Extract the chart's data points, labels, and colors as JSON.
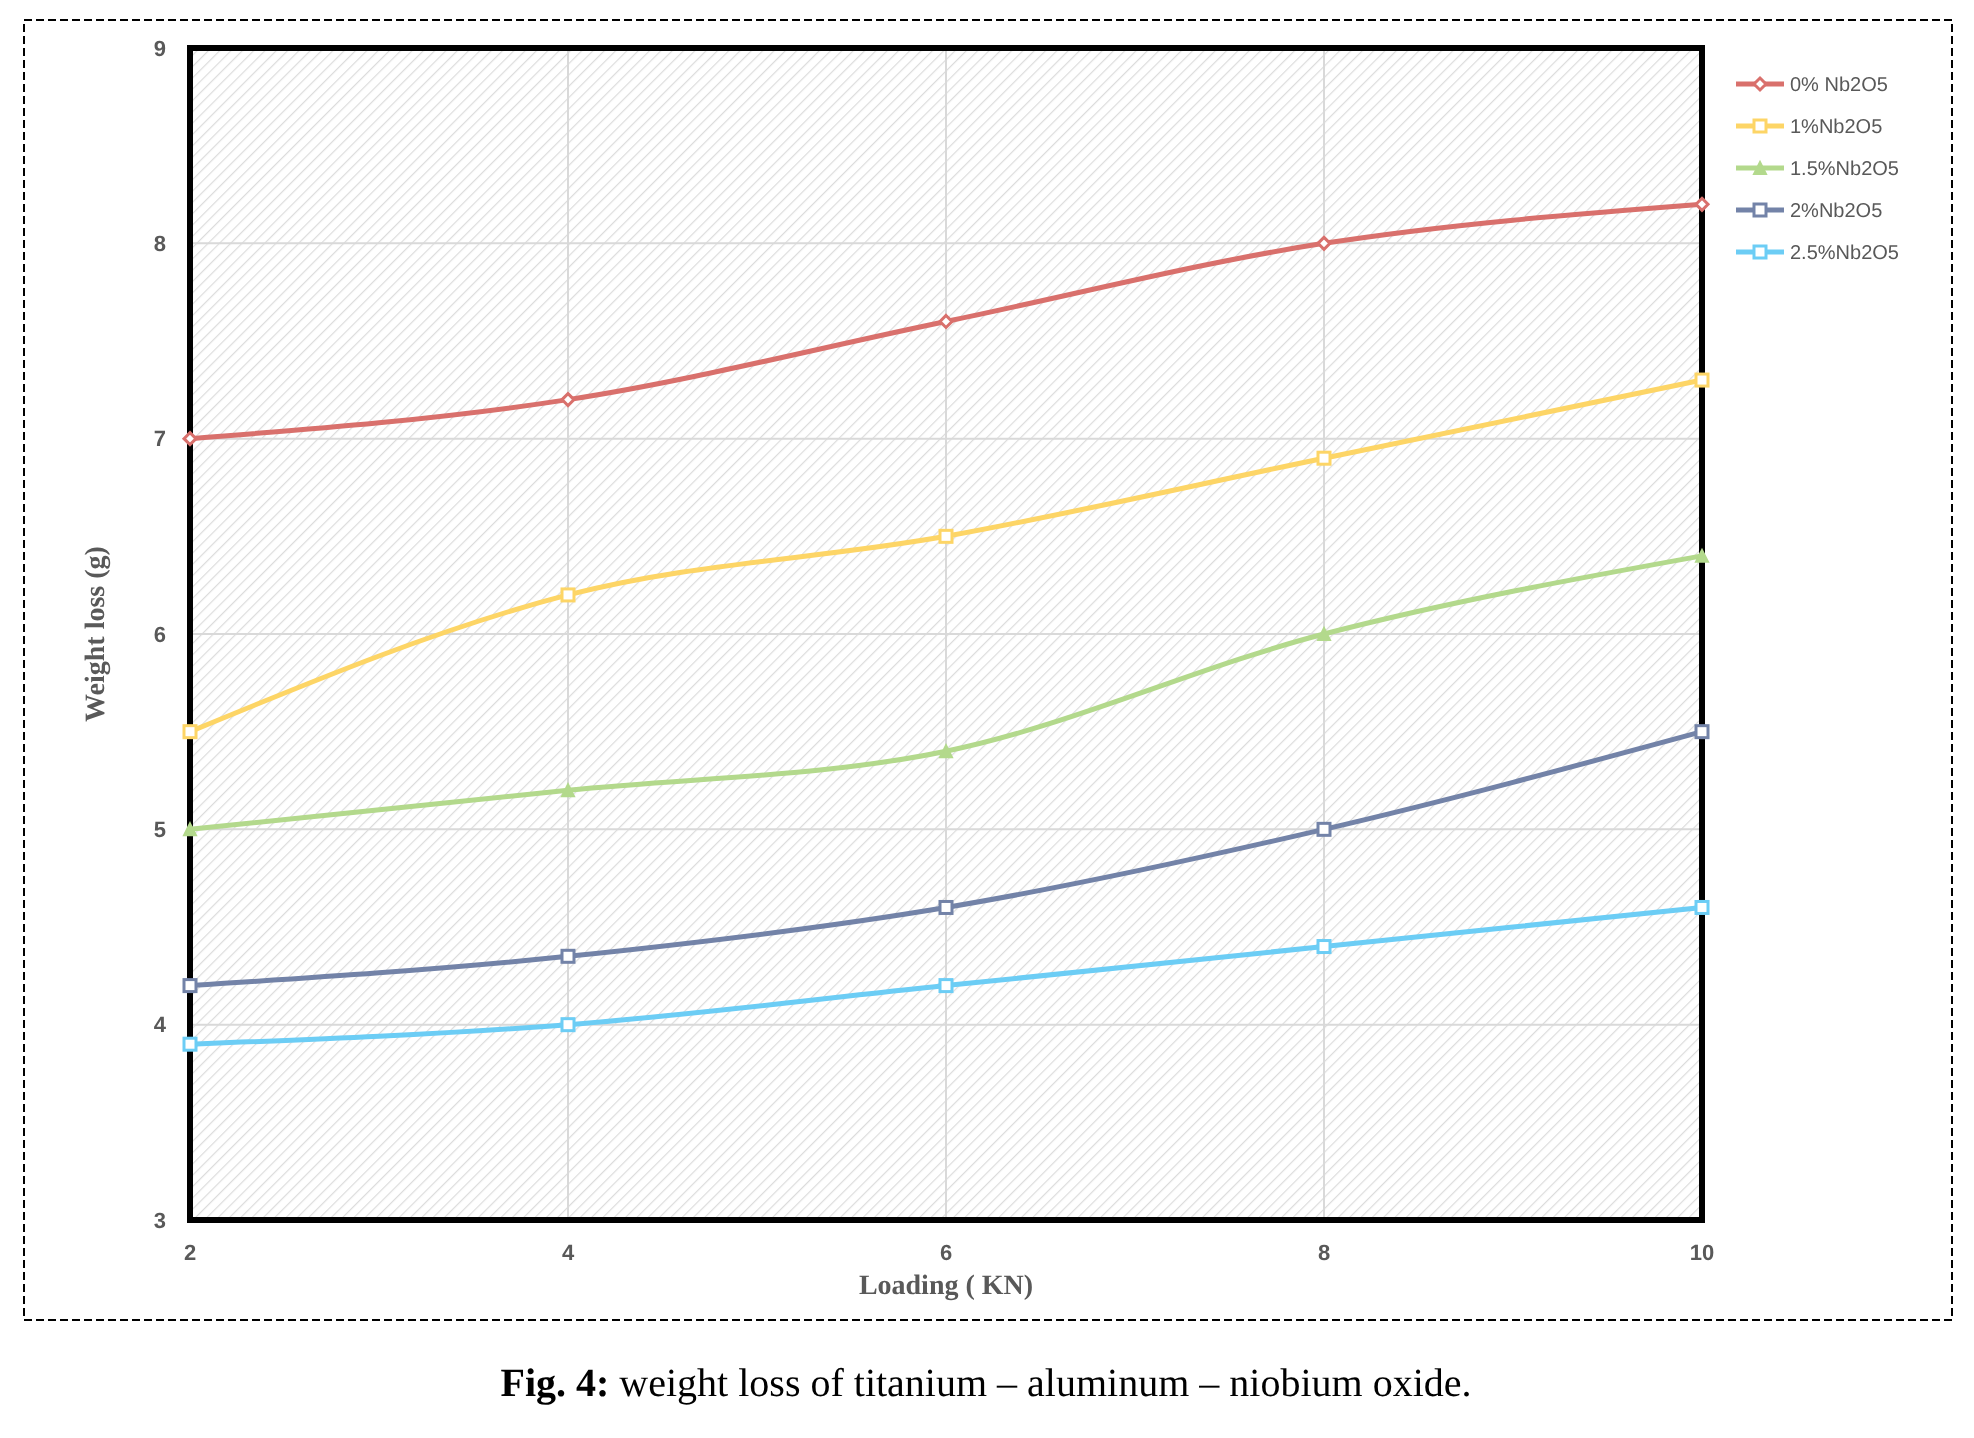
{
  "chart_data": {
    "type": "line",
    "title": "Fig. 4: weight loss of titanium – aluminum – niobium oxide.",
    "xlabel": "Loading  ( KN)",
    "ylabel": "Weight loss (g)",
    "x": [
      2,
      4,
      6,
      8,
      10
    ],
    "xlim": [
      2,
      10
    ],
    "xticks": [
      2,
      4,
      6,
      8,
      10
    ],
    "ylim": [
      3,
      9
    ],
    "yticks": [
      3,
      4,
      5,
      6,
      7,
      8,
      9
    ],
    "grid": true,
    "legend": "top right",
    "line_style": "solid",
    "series": [
      {
        "name": "0% Nb2O5",
        "color": "#d9706c",
        "marker": "diamond",
        "values": [
          7,
          7.2,
          7.6,
          8,
          8.2
        ]
      },
      {
        "name": "1%Nb2O5",
        "color": "#fdd566",
        "marker": "square",
        "values": [
          5.5,
          6.2,
          6.5,
          6.9,
          7.3
        ]
      },
      {
        "name": "1.5%Nb2O5",
        "color": "#b3d98c",
        "marker": "triangle",
        "values": [
          5,
          5.2,
          5.4,
          6,
          6.4
        ]
      },
      {
        "name": "2%Nb2O5",
        "color": "#7383a8",
        "marker": "square",
        "values": [
          4.2,
          4.35,
          4.6,
          5,
          5.5
        ]
      },
      {
        "name": "2.5%Nb2O5",
        "color": "#6ccdf5",
        "marker": "square",
        "values": [
          3.9,
          4.0,
          4.2,
          4.4,
          4.6
        ]
      }
    ]
  }
}
